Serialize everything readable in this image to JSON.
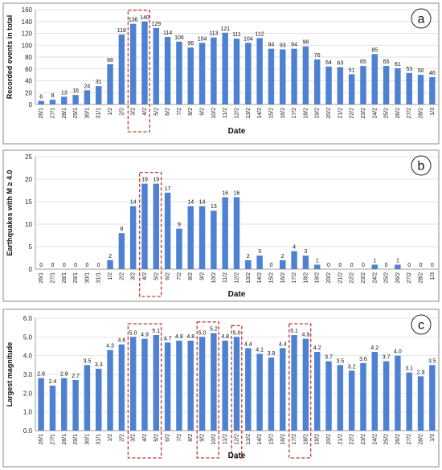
{
  "chart_data": [
    {
      "type": "bar",
      "panel": "a",
      "color": "#4f81d2",
      "categories": [
        "26/1",
        "27/1",
        "28/1",
        "29/1",
        "30/1",
        "31/1",
        "1/2",
        "2/2",
        "3/2",
        "4/2",
        "5/2",
        "6/2",
        "7/2",
        "8/2",
        "9/2",
        "10/2",
        "11/2",
        "12/2",
        "13/2",
        "14/2",
        "15/2",
        "16/2",
        "17/2",
        "18/2",
        "19/2",
        "20/2",
        "21/2",
        "22/2",
        "23/2",
        "24/2",
        "25/2",
        "26/2",
        "27/2",
        "28/2",
        "1/3"
      ],
      "values": [
        6,
        8,
        13,
        16,
        24,
        31,
        68,
        118,
        136,
        140,
        129,
        114,
        106,
        96,
        104,
        113,
        121,
        111,
        104,
        112,
        94,
        93,
        94,
        98,
        76,
        64,
        63,
        51,
        65,
        85,
        65,
        61,
        53,
        50,
        46
      ],
      "labels": [
        "6",
        "8",
        "13",
        "16",
        "24",
        "31",
        "68",
        "118",
        "136",
        "140",
        "129",
        "114",
        "106",
        "96",
        "104",
        "113",
        "121",
        "111",
        "104",
        "112",
        "94",
        "93",
        "94",
        "98",
        "76",
        "64",
        "63",
        "51",
        "65",
        "85",
        "65",
        "61",
        "53",
        "50",
        "46"
      ],
      "xlabel": "Date",
      "ylabel": "Recorded events in total",
      "ylim": [
        0,
        160
      ],
      "yticks": [
        0,
        20,
        40,
        60,
        80,
        100,
        120,
        140,
        160
      ],
      "ytick_labels": [
        "0",
        "20",
        "40",
        "60",
        "80",
        "100",
        "120",
        "140",
        "160"
      ],
      "grid": true,
      "highlight_ranges": [
        [
          8,
          9
        ]
      ]
    },
    {
      "type": "bar",
      "panel": "b",
      "color": "#4f81d2",
      "categories": [
        "26/1",
        "27/1",
        "28/1",
        "29/1",
        "30/1",
        "31/1",
        "1/2",
        "2/2",
        "3/2",
        "4/2",
        "5/2",
        "6/2",
        "7/2",
        "8/2",
        "9/2",
        "10/2",
        "11/2",
        "12/2",
        "13/2",
        "14/2",
        "15/2",
        "16/2",
        "17/2",
        "18/2",
        "19/2",
        "20/2",
        "21/2",
        "22/2",
        "23/2",
        "24/2",
        "25/2",
        "26/2",
        "27/2",
        "28/2",
        "1/3"
      ],
      "values": [
        0,
        0,
        0,
        0,
        0,
        0,
        2,
        8,
        14,
        19,
        19,
        17,
        9,
        14,
        14,
        13,
        16,
        16,
        2,
        3,
        0,
        2,
        4,
        3,
        1,
        0,
        0,
        0,
        0,
        1,
        0,
        1,
        0,
        0,
        0
      ],
      "labels": [
        "0",
        "0",
        "0",
        "0",
        "0",
        "0",
        "2",
        "8",
        "14",
        "19",
        "19",
        "17",
        "9",
        "14",
        "14",
        "13",
        "16",
        "16",
        "2",
        "3",
        "0",
        "2",
        "4",
        "3",
        "1",
        "0",
        "0",
        "0",
        "0",
        "1",
        "0",
        "1",
        "0",
        "0",
        "0"
      ],
      "xlabel": "Date",
      "ylabel": "Earthquakes with M ≥ 4.0",
      "ylim": [
        0,
        25
      ],
      "yticks": [
        0,
        5,
        10,
        15,
        20,
        25
      ],
      "ytick_labels": [
        "0",
        "5",
        "10",
        "15",
        "20",
        "25"
      ],
      "grid": true,
      "highlight_ranges": [
        [
          9,
          10
        ]
      ]
    },
    {
      "type": "bar",
      "panel": "c",
      "color": "#4f81d2",
      "categories": [
        "26/1",
        "27/1",
        "28/1",
        "29/1",
        "30/1",
        "31/1",
        "1/2",
        "2/2",
        "3/2",
        "4/2",
        "5/2",
        "6/2",
        "7/2",
        "8/2",
        "9/2",
        "10/2",
        "11/2",
        "12/2",
        "13/2",
        "14/2",
        "15/2",
        "16/2",
        "17/2",
        "18/2",
        "19/2",
        "20/2",
        "21/2",
        "22/2",
        "23/2",
        "24/2",
        "25/2",
        "26/2",
        "27/2",
        "28/2",
        "1/3"
      ],
      "values": [
        2.8,
        2.4,
        2.8,
        2.7,
        3.5,
        3.3,
        4.3,
        4.6,
        5.0,
        4.9,
        5.1,
        4.7,
        4.8,
        4.8,
        5.0,
        5.2,
        4.8,
        5.0,
        4.4,
        4.1,
        3.9,
        4.4,
        5.1,
        4.9,
        4.2,
        3.7,
        3.5,
        3.2,
        3.6,
        4.2,
        3.7,
        4.0,
        3.1,
        2.9,
        3.5
      ],
      "labels": [
        "2.8",
        "2.4",
        "2.8",
        "2.7",
        "3.5",
        "3.3",
        "4.3",
        "4.6",
        "5.0",
        "4.9",
        "5.1",
        "4.7",
        "4.8",
        "4.8",
        "5.0",
        "5.2",
        "4.8",
        "5.0",
        "4.4",
        "4.1",
        "3.9",
        "4.4",
        "5.1",
        "4.9",
        "4.2",
        "3.7",
        "3.5",
        "3.2",
        "3.6",
        "4.2",
        "3.7",
        "4.0",
        "3.1",
        "2.9",
        "3.5"
      ],
      "xlabel": "Date",
      "ylabel": "Largest magnitude",
      "ylim": [
        0,
        6
      ],
      "yticks": [
        0,
        1,
        2,
        3,
        4,
        5,
        6
      ],
      "ytick_labels": [
        "0.0",
        "1.0",
        "2.0",
        "3.0",
        "4.0",
        "5.0",
        "6.0"
      ],
      "grid": true,
      "highlight_ranges": [
        [
          8,
          10
        ],
        [
          14,
          15
        ],
        [
          17,
          17
        ],
        [
          22,
          23
        ]
      ]
    }
  ]
}
